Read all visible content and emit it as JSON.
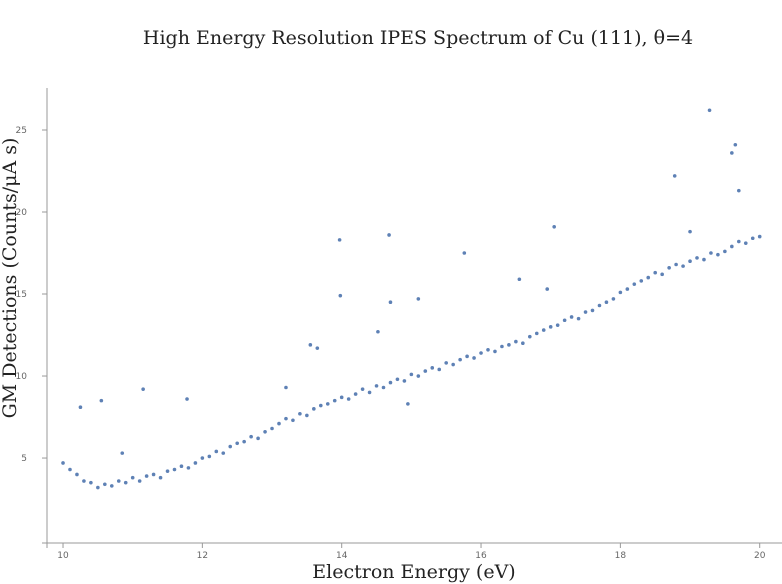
{
  "chart_data": {
    "type": "scatter",
    "title": "High Energy Resolution IPES Spectrum of Cu (111), θ=4",
    "x_label": "Electron Energy (eV)",
    "y_label": "GM Detections (Counts/μA s)",
    "color": "#5e81b5",
    "xlim": [
      9.77,
      20.32
    ],
    "ylim": [
      -0.18,
      27.56
    ],
    "xticks": [
      10,
      12,
      14,
      16,
      18,
      20
    ],
    "yticks": [
      5,
      10,
      15,
      20,
      25
    ],
    "x": [
      10.0,
      10.1,
      10.2,
      10.3,
      10.4,
      10.5,
      10.6,
      10.7,
      10.8,
      10.9,
      11.0,
      11.1,
      11.2,
      11.3,
      11.4,
      11.5,
      11.6,
      11.7,
      11.8,
      11.9,
      12.0,
      12.1,
      12.2,
      12.3,
      12.4,
      12.5,
      12.6,
      12.7,
      12.8,
      12.9,
      13.0,
      13.1,
      13.2,
      13.3,
      13.4,
      13.5,
      13.6,
      13.7,
      13.8,
      13.9,
      14.0,
      14.1,
      14.2,
      14.3,
      14.4,
      14.5,
      14.6,
      14.7,
      14.8,
      14.9,
      15.0,
      15.1,
      15.2,
      15.3,
      15.4,
      15.5,
      15.6,
      15.7,
      15.8,
      15.9,
      16.0,
      16.1,
      16.2,
      16.3,
      16.4,
      16.5,
      16.6,
      16.7,
      16.8,
      16.9,
      17.0,
      17.1,
      17.2,
      17.3,
      17.4,
      17.5,
      17.6,
      17.7,
      17.8,
      17.9,
      18.0,
      18.1,
      18.2,
      18.3,
      18.4,
      18.5,
      18.6,
      18.7,
      18.8,
      18.9,
      19.0,
      19.1,
      19.2,
      19.3,
      19.4,
      19.5,
      19.6,
      19.7,
      19.8,
      19.9,
      20.0,
      10.25,
      10.55,
      11.15,
      11.78,
      13.55,
      13.65,
      13.97,
      13.98,
      14.52,
      14.68,
      14.7,
      15.1,
      15.76,
      16.55,
      17.05,
      16.95,
      18.78,
      19.28,
      19.6,
      19.65,
      19.7,
      19.0,
      10.85,
      14.95,
      13.2
    ],
    "y": [
      4.7,
      4.3,
      4.0,
      3.6,
      3.5,
      3.2,
      3.4,
      3.3,
      3.6,
      3.5,
      3.8,
      3.6,
      3.9,
      4.0,
      3.8,
      4.2,
      4.3,
      4.5,
      4.4,
      4.7,
      5.0,
      5.1,
      5.4,
      5.3,
      5.7,
      5.9,
      6.0,
      6.3,
      6.2,
      6.6,
      6.8,
      7.1,
      7.4,
      7.3,
      7.7,
      7.6,
      8.0,
      8.2,
      8.3,
      8.5,
      8.7,
      8.6,
      8.9,
      9.2,
      9.0,
      9.4,
      9.3,
      9.6,
      9.8,
      9.7,
      10.1,
      10.0,
      10.3,
      10.5,
      10.4,
      10.8,
      10.7,
      11.0,
      11.2,
      11.1,
      11.4,
      11.6,
      11.5,
      11.8,
      11.9,
      12.1,
      12.0,
      12.4,
      12.6,
      12.8,
      13.0,
      13.1,
      13.4,
      13.6,
      13.5,
      13.9,
      14.0,
      14.3,
      14.5,
      14.7,
      15.1,
      15.3,
      15.6,
      15.8,
      16.0,
      16.3,
      16.2,
      16.6,
      16.8,
      16.7,
      17.0,
      17.2,
      17.1,
      17.5,
      17.4,
      17.6,
      17.9,
      18.2,
      18.1,
      18.4,
      18.5,
      8.1,
      8.5,
      9.2,
      8.6,
      11.9,
      11.7,
      18.3,
      14.9,
      12.7,
      18.6,
      14.5,
      14.7,
      17.5,
      15.9,
      19.1,
      15.3,
      22.2,
      26.2,
      23.6,
      24.1,
      21.3,
      18.8,
      5.3,
      8.3,
      9.3
    ]
  }
}
